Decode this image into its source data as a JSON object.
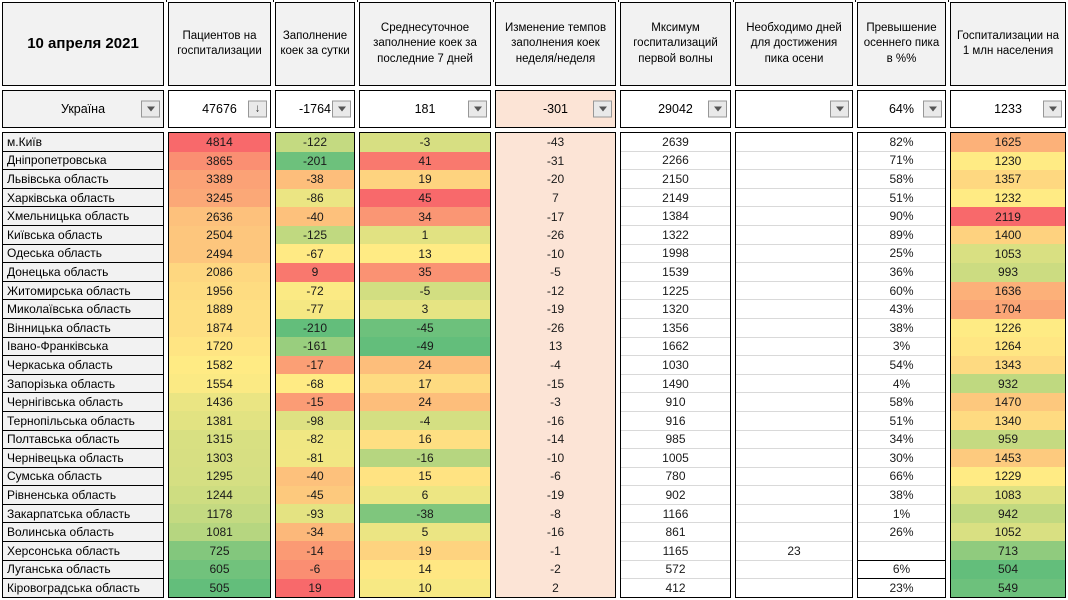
{
  "date_label": "10 апреля 2021",
  "columns": [
    {
      "key": "name",
      "label": ""
    },
    {
      "key": "patients",
      "label": "Пациентов на госпитализации"
    },
    {
      "key": "daily_fill",
      "label": "Заполнение коек за сутки"
    },
    {
      "key": "avg7",
      "label": "Среднесуточное заполнение коек за последние 7 дней"
    },
    {
      "key": "week_change",
      "label": "Изменение темпов заполнения коек неделя/неделя"
    },
    {
      "key": "first_wave_max",
      "label": "Мксимум госпитализаций первой волны"
    },
    {
      "key": "days_to_peak",
      "label": "Необходимо дней для достижения пика осени"
    },
    {
      "key": "exceed_pct",
      "label": "Превышение осеннего пика в %%"
    },
    {
      "key": "per_million",
      "label": "Госпитализации на 1 млн населения"
    }
  ],
  "ukraine_row": {
    "name": "Україна",
    "patients": "47676",
    "daily_fill": "-1764",
    "avg7": "181",
    "week_change": "-301",
    "first_wave_max": "29042",
    "days_to_peak": "",
    "exceed_pct": "64%",
    "per_million": "1233"
  },
  "rows": [
    {
      "name": "м.Київ",
      "patients": 4814,
      "daily_fill": -122,
      "avg7": -3,
      "week_change": -43,
      "first_wave_max": 2639,
      "days_to_peak": "",
      "exceed_pct": "82%",
      "per_million": 1625
    },
    {
      "name": "Дніпропетровська",
      "patients": 3865,
      "daily_fill": -201,
      "avg7": 41,
      "week_change": -31,
      "first_wave_max": 2266,
      "days_to_peak": "",
      "exceed_pct": "71%",
      "per_million": 1230
    },
    {
      "name": "Львівська область",
      "patients": 3389,
      "daily_fill": -38,
      "avg7": 19,
      "week_change": -20,
      "first_wave_max": 2150,
      "days_to_peak": "",
      "exceed_pct": "58%",
      "per_million": 1357
    },
    {
      "name": "Харківська область",
      "patients": 3245,
      "daily_fill": -86,
      "avg7": 45,
      "week_change": 7,
      "first_wave_max": 2149,
      "days_to_peak": "",
      "exceed_pct": "51%",
      "per_million": 1232
    },
    {
      "name": "Хмельницька область",
      "patients": 2636,
      "daily_fill": -40,
      "avg7": 34,
      "week_change": -17,
      "first_wave_max": 1384,
      "days_to_peak": "",
      "exceed_pct": "90%",
      "per_million": 2119
    },
    {
      "name": "Київська область",
      "patients": 2504,
      "daily_fill": -125,
      "avg7": 1,
      "week_change": -26,
      "first_wave_max": 1322,
      "days_to_peak": "",
      "exceed_pct": "89%",
      "per_million": 1400
    },
    {
      "name": "Одеська область",
      "patients": 2494,
      "daily_fill": -67,
      "avg7": 13,
      "week_change": -10,
      "first_wave_max": 1998,
      "days_to_peak": "",
      "exceed_pct": "25%",
      "per_million": 1053
    },
    {
      "name": "Донецька область",
      "patients": 2086,
      "daily_fill": 9,
      "avg7": 35,
      "week_change": -5,
      "first_wave_max": 1539,
      "days_to_peak": "",
      "exceed_pct": "36%",
      "per_million": 993
    },
    {
      "name": "Житомирська область",
      "patients": 1956,
      "daily_fill": -72,
      "avg7": -5,
      "week_change": -12,
      "first_wave_max": 1225,
      "days_to_peak": "",
      "exceed_pct": "60%",
      "per_million": 1636
    },
    {
      "name": "Миколаївська область",
      "patients": 1889,
      "daily_fill": -77,
      "avg7": 3,
      "week_change": -19,
      "first_wave_max": 1320,
      "days_to_peak": "",
      "exceed_pct": "43%",
      "per_million": 1704
    },
    {
      "name": "Вінницька область",
      "patients": 1874,
      "daily_fill": -210,
      "avg7": -45,
      "week_change": -26,
      "first_wave_max": 1356,
      "days_to_peak": "",
      "exceed_pct": "38%",
      "per_million": 1226
    },
    {
      "name": "Івано-Франківська",
      "patients": 1720,
      "daily_fill": -161,
      "avg7": -49,
      "week_change": 13,
      "first_wave_max": 1662,
      "days_to_peak": "",
      "exceed_pct": "3%",
      "per_million": 1264
    },
    {
      "name": "Черкаська область",
      "patients": 1582,
      "daily_fill": -17,
      "avg7": 24,
      "week_change": -4,
      "first_wave_max": 1030,
      "days_to_peak": "",
      "exceed_pct": "54%",
      "per_million": 1343
    },
    {
      "name": "Запорізька область",
      "patients": 1554,
      "daily_fill": -68,
      "avg7": 17,
      "week_change": -15,
      "first_wave_max": 1490,
      "days_to_peak": "",
      "exceed_pct": "4%",
      "per_million": 932
    },
    {
      "name": "Чернігівська область",
      "patients": 1436,
      "daily_fill": -15,
      "avg7": 24,
      "week_change": -3,
      "first_wave_max": 910,
      "days_to_peak": "",
      "exceed_pct": "58%",
      "per_million": 1470
    },
    {
      "name": "Тернопільська область",
      "patients": 1381,
      "daily_fill": -98,
      "avg7": -4,
      "week_change": -16,
      "first_wave_max": 916,
      "days_to_peak": "",
      "exceed_pct": "51%",
      "per_million": 1340
    },
    {
      "name": "Полтавська область",
      "patients": 1315,
      "daily_fill": -82,
      "avg7": 16,
      "week_change": -14,
      "first_wave_max": 985,
      "days_to_peak": "",
      "exceed_pct": "34%",
      "per_million": 959
    },
    {
      "name": "Чернівецька область",
      "patients": 1303,
      "daily_fill": -81,
      "avg7": -16,
      "week_change": -10,
      "first_wave_max": 1005,
      "days_to_peak": "",
      "exceed_pct": "30%",
      "per_million": 1453
    },
    {
      "name": "Сумська область",
      "patients": 1295,
      "daily_fill": -40,
      "avg7": 15,
      "week_change": -6,
      "first_wave_max": 780,
      "days_to_peak": "",
      "exceed_pct": "66%",
      "per_million": 1229
    },
    {
      "name": "Рівненська область",
      "patients": 1244,
      "daily_fill": -45,
      "avg7": 6,
      "week_change": -19,
      "first_wave_max": 902,
      "days_to_peak": "",
      "exceed_pct": "38%",
      "per_million": 1083
    },
    {
      "name": "Закарпатська область",
      "patients": 1178,
      "daily_fill": -93,
      "avg7": -38,
      "week_change": -8,
      "first_wave_max": 1166,
      "days_to_peak": "",
      "exceed_pct": "1%",
      "per_million": 942
    },
    {
      "name": "Волинська область",
      "patients": 1081,
      "daily_fill": -34,
      "avg7": 5,
      "week_change": -16,
      "first_wave_max": 861,
      "days_to_peak": "",
      "exceed_pct": "26%",
      "per_million": 1052
    },
    {
      "name": "Херсонська область",
      "patients": 725,
      "daily_fill": -14,
      "avg7": 19,
      "week_change": -1,
      "first_wave_max": 1165,
      "days_to_peak": "23",
      "exceed_pct": "",
      "per_million": 713
    },
    {
      "name": "Луганська область",
      "patients": 605,
      "daily_fill": -6,
      "avg7": 14,
      "week_change": -2,
      "first_wave_max": 572,
      "days_to_peak": "",
      "exceed_pct": "6%",
      "per_million": 504
    },
    {
      "name": "Кіровоградська область",
      "patients": 505,
      "daily_fill": 19,
      "avg7": 10,
      "week_change": 2,
      "first_wave_max": 412,
      "days_to_peak": "",
      "exceed_pct": "23%",
      "per_million": 549
    }
  ],
  "colors": {
    "scale_green": "#63BE7B",
    "scale_yellow": "#FFEB84",
    "scale_red": "#F8696B",
    "pink": "#FCE4D6",
    "header_bg": "#F2F2F2",
    "grid_light": "#D9D9D9",
    "border": "#000000"
  },
  "color_scales": {
    "patients": {
      "min": 505,
      "mid": 1582,
      "max": 4814
    },
    "daily_fill": {
      "min": -210,
      "mid": -68,
      "max": 19
    },
    "avg7": {
      "min": -49,
      "mid": 13,
      "max": 45
    },
    "per_million": {
      "min": 504,
      "mid": 1230,
      "max": 2119
    }
  },
  "filter": {
    "sorted_column": "patients",
    "sort_icon": "↓"
  }
}
